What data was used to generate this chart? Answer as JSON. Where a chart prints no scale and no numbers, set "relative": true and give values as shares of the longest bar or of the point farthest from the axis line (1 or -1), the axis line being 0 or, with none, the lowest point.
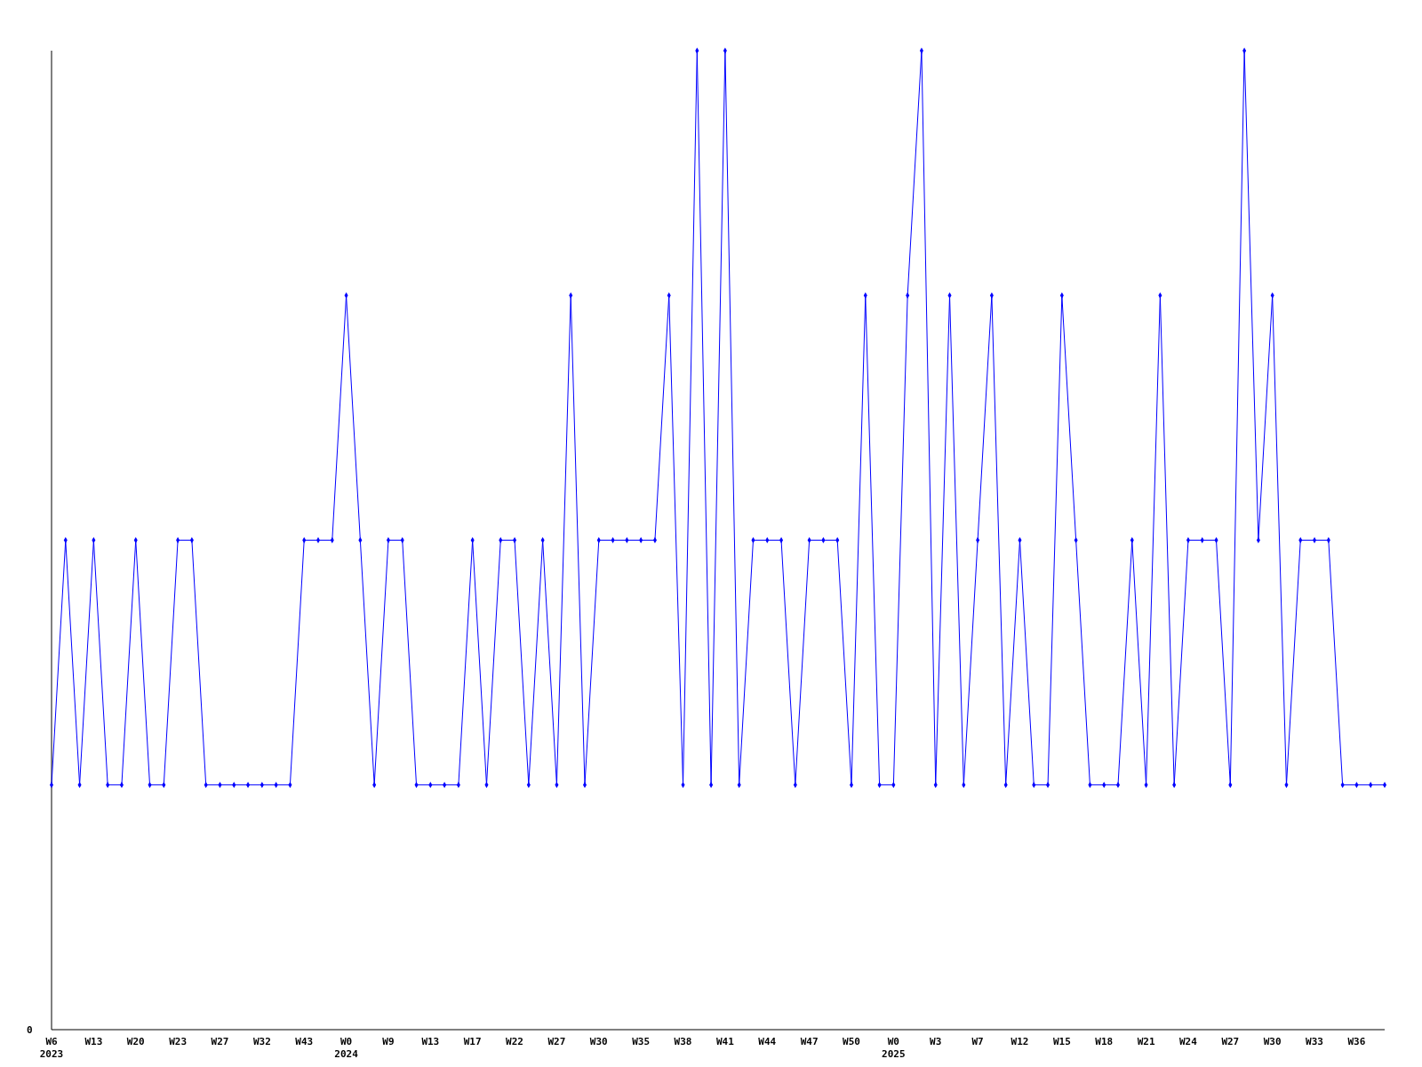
{
  "chart_data": {
    "type": "line",
    "relative": true,
    "marker": "diamond",
    "annotations": [
      "0"
    ],
    "categories": [
      "W6\n2023",
      null,
      null,
      "W13",
      null,
      null,
      "W20",
      null,
      null,
      "W23",
      null,
      null,
      "W27",
      null,
      null,
      "W32",
      null,
      null,
      "W43",
      null,
      null,
      "W0\n2024",
      null,
      null,
      "W9",
      null,
      null,
      "W13",
      null,
      null,
      "W17",
      null,
      null,
      "W22",
      null,
      null,
      "W27",
      null,
      null,
      "W30",
      null,
      null,
      "W35",
      null,
      null,
      "W38",
      null,
      null,
      "W41",
      null,
      null,
      "W44",
      null,
      null,
      "W47",
      null,
      null,
      "W50",
      null,
      null,
      "W0\n2025",
      null,
      null,
      "W3",
      null,
      null,
      "W7",
      null,
      null,
      "W12",
      null,
      null,
      "W15",
      null,
      null,
      "W18",
      null,
      null,
      "W21",
      null,
      null,
      "W24",
      null,
      null,
      "W27",
      null,
      null,
      "W30",
      null,
      null,
      "W33",
      null,
      null,
      "W36",
      null,
      null
    ],
    "series": [
      {
        "color": "#0000ff",
        "values": [
          0.25,
          0.5,
          0.25,
          0.5,
          0.25,
          0.25,
          0.5,
          0.25,
          0.25,
          0.5,
          0.5,
          0.25,
          0.25,
          0.25,
          0.25,
          0.25,
          0.25,
          0.25,
          0.5,
          0.5,
          0.5,
          0.75,
          0.5,
          0.25,
          0.5,
          0.5,
          0.25,
          0.25,
          0.25,
          0.25,
          0.5,
          0.25,
          0.5,
          0.5,
          0.25,
          0.5,
          0.25,
          0.75,
          0.25,
          0.5,
          0.5,
          0.5,
          0.5,
          0.5,
          0.75,
          0.25,
          1,
          0.25,
          1,
          0.25,
          0.5,
          0.5,
          0.5,
          0.25,
          0.5,
          0.5,
          0.5,
          0.25,
          0.75,
          0.25,
          0.25,
          0.75,
          1,
          0.25,
          0.75,
          0.25,
          0.5,
          0.75,
          0.25,
          0.5,
          0.25,
          0.25,
          0.75,
          0.5,
          0.25,
          0.25,
          0.25,
          0.5,
          0.25,
          0.75,
          0.25,
          0.5,
          0.5,
          0.5,
          0.25,
          1,
          0.5,
          0.75,
          0.25,
          0.5,
          0.5,
          0.5,
          0.25,
          0.25,
          0.25,
          0.25
        ]
      }
    ]
  }
}
